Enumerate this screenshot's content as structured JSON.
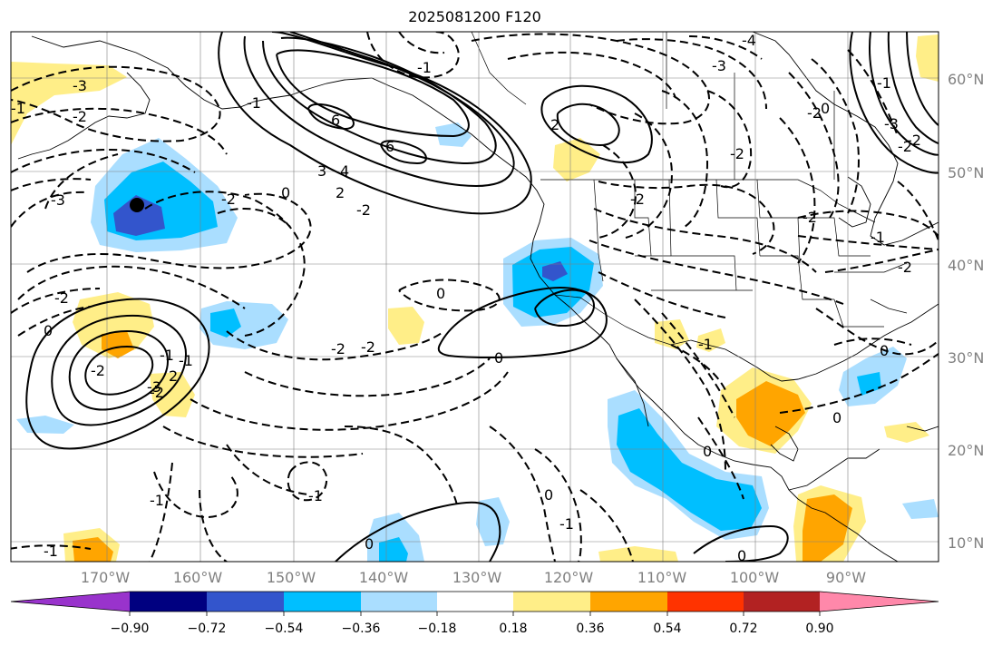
{
  "title": "2025081200 F120",
  "lon_labels": [
    "170°W",
    "160°W",
    "150°W",
    "140°W",
    "130°W",
    "120°W",
    "110°W",
    "100°W",
    "90°W"
  ],
  "lat_labels": [
    "60°N",
    "50°N",
    "40°N",
    "30°N",
    "20°N",
    "10°N"
  ],
  "colorbar": {
    "ticks": [
      "−0.90",
      "−0.72",
      "−0.54",
      "−0.36",
      "−0.18",
      "0.18",
      "0.36",
      "0.54",
      "0.72",
      "0.90"
    ],
    "colors": [
      "#9933cc",
      "#000080",
      "#3355cc",
      "#00bfff",
      "#aadeff",
      "#ffffff",
      "#ffee88",
      "#ffa500",
      "#ff3300",
      "#b22222",
      "#ff88aa"
    ]
  },
  "fill_colors": {
    "light_blue": "#aadeff",
    "blue": "#00bfff",
    "dark_blue": "#3355cc",
    "light_yellow": "#ffee88",
    "orange": "#ffa500"
  },
  "contour_labels": [
    "-3",
    "-2",
    "-1",
    "-2",
    "-3",
    "-2",
    "-1",
    "0",
    "-2",
    "-3",
    "-4",
    "-3",
    "6",
    "6",
    "3",
    "4",
    "2",
    "2",
    "-2",
    "0",
    "-1",
    "-2",
    "-2",
    "-2",
    "-2",
    "-1",
    "-2",
    "0",
    "-2",
    "-2",
    "-2",
    "-1",
    "2",
    "0",
    "-1",
    "-1",
    "-1",
    "0",
    "0",
    "0",
    "-1",
    "-3",
    "0",
    "-2",
    "-2",
    "-1",
    "-1",
    "0",
    "0",
    "0",
    "-1"
  ]
}
